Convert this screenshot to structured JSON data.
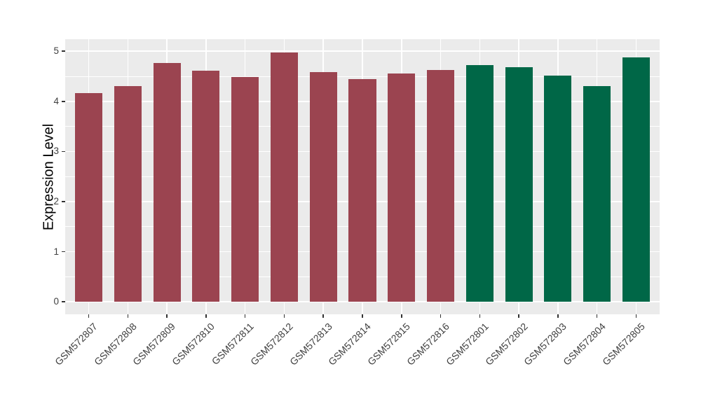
{
  "chart_data": {
    "type": "bar",
    "title": "",
    "xlabel": "",
    "ylabel": "Expression Level",
    "ylim": [
      -0.25,
      5.24
    ],
    "yticks": [
      0,
      1,
      2,
      3,
      4,
      5
    ],
    "yticks_minor": [
      0.5,
      1.5,
      2.5,
      3.5,
      4.5
    ],
    "grid": true,
    "legend_position": "none",
    "panel_background": "#EBEBEB",
    "grid_color": "#FFFFFF",
    "categories": [
      "GSM572807",
      "GSM572808",
      "GSM572809",
      "GSM572810",
      "GSM572811",
      "GSM572812",
      "GSM572813",
      "GSM572814",
      "GSM572815",
      "GSM572816",
      "GSM572801",
      "GSM572802",
      "GSM572803",
      "GSM572804",
      "GSM572805"
    ],
    "values": [
      4.17,
      4.3,
      4.76,
      4.61,
      4.48,
      4.97,
      4.58,
      4.45,
      4.56,
      4.63,
      4.73,
      4.68,
      4.51,
      4.31,
      4.87
    ],
    "bar_colors": [
      "#9B4450",
      "#9B4450",
      "#9B4450",
      "#9B4450",
      "#9B4450",
      "#9B4450",
      "#9B4450",
      "#9B4450",
      "#9B4450",
      "#9B4450",
      "#006747",
      "#006747",
      "#006747",
      "#006747",
      "#006747"
    ],
    "palette": {
      "maroon": "#9B4450",
      "green": "#006747"
    }
  }
}
